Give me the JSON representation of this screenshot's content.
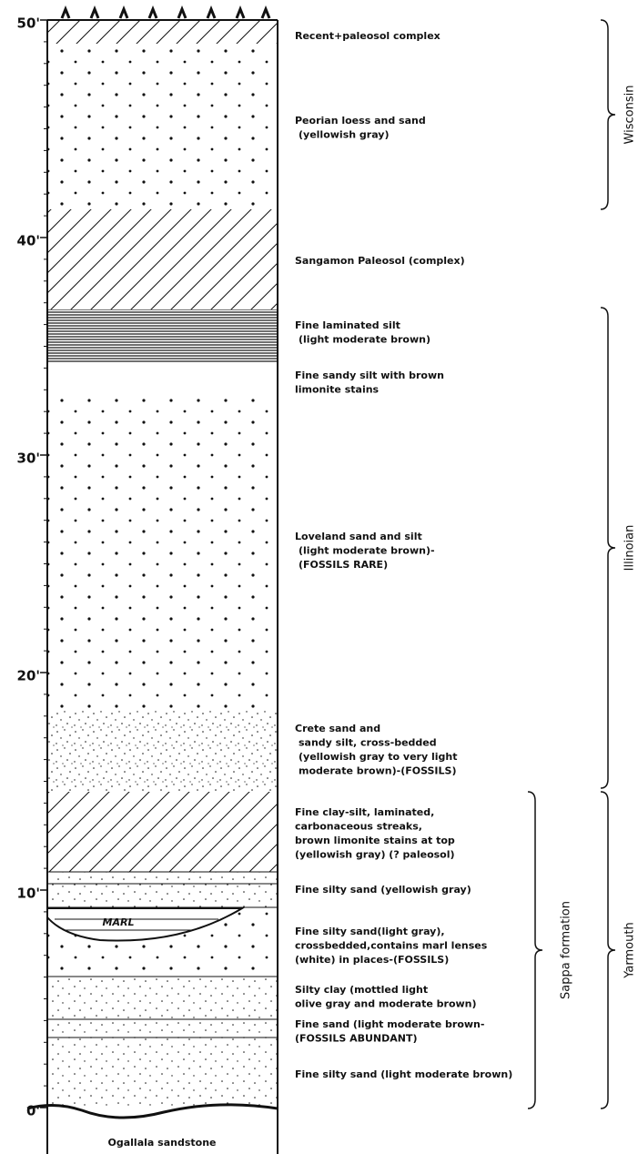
{
  "depth_labels": [
    "50'",
    "40'",
    "30'",
    "20'",
    "10'",
    "0'"
  ],
  "layers": [
    {
      "lines": [
        "Recent+paleosol complex"
      ]
    },
    {
      "lines": [
        "Peorian loess and sand",
        "(yellowish gray)"
      ]
    },
    {
      "lines": [
        "Sangamon Paleosol (complex)"
      ]
    },
    {
      "lines": [
        "Fine laminated silt",
        "(light moderate brown)"
      ]
    },
    {
      "lines": [
        "Fine sandy silt  with brown",
        "limonite stains"
      ]
    },
    {
      "lines": [
        "Loveland sand  and silt",
        "(light moderate brown)-",
        "(FOSSILS RARE)"
      ]
    },
    {
      "lines": [
        "Crete sand and",
        "sandy silt, cross-bedded",
        "(yellowish gray to very light",
        "moderate brown)-(FOSSILS)"
      ]
    },
    {
      "lines": [
        "Fine clay-silt, laminated,",
        "carbonaceous streaks,",
        "brown limonite stains at top",
        "(yellowish gray) (? paleosol)"
      ]
    },
    {
      "lines": [
        "Fine silty sand (yellowish gray)"
      ]
    },
    {
      "lines": [
        "Fine silty sand(light gray),",
        "crossbedded,contains marl lenses",
        "(white) in places-(FOSSILS)"
      ]
    },
    {
      "lines": [
        "Silty clay (mottled light",
        "olive gray and moderate brown)"
      ]
    },
    {
      "lines": [
        "Fine sand  (light moderate brown-",
        "(FOSSILS ABUNDANT)"
      ]
    },
    {
      "lines": [
        "Fine silty sand (light moderate brown)"
      ]
    }
  ],
  "marl_label": "MARL",
  "base_label": "Ogallala sandstone",
  "brackets": [
    "Wisconsin",
    "Illinoian",
    "Sappa formation",
    "Yarmouth"
  ]
}
